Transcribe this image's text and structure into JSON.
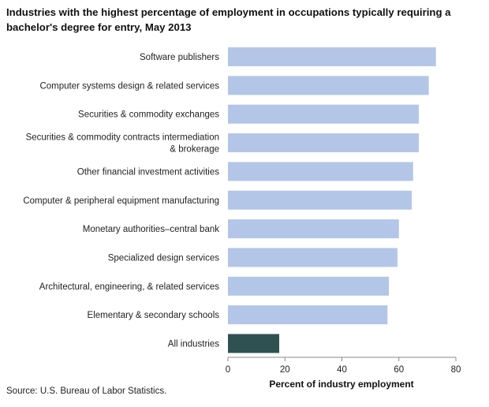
{
  "chart_data": {
    "type": "bar",
    "orientation": "horizontal",
    "title": "Industries with the highest percentage of employment in occupations typically requiring a bachelor's degree for entry, May 2013",
    "xlabel": "Percent of industry employment",
    "ylabel": "",
    "xlim": [
      0,
      80
    ],
    "xticks": [
      0,
      20,
      40,
      60,
      80
    ],
    "grid": false,
    "source": "Source: U.S. Bureau of Labor Statistics.",
    "colors": {
      "bar": "#b4c6e7",
      "highlight": "#2f5151",
      "axis": "#888888"
    },
    "categories": [
      [
        "Software publishers"
      ],
      [
        "Computer systems design & related services"
      ],
      [
        "Securities & commodity exchanges"
      ],
      [
        "Securities & commodity contracts intermediation",
        "& brokerage"
      ],
      [
        "Other financial investment activities"
      ],
      [
        "Computer & peripheral equipment manufacturing"
      ],
      [
        "Monetary authorities–central bank"
      ],
      [
        "Specialized design services"
      ],
      [
        "Architectural, engineering, & related services"
      ],
      [
        "Elementary & secondary schools"
      ],
      [
        "All industries"
      ]
    ],
    "values": [
      73,
      70.5,
      67,
      67,
      65,
      64.5,
      60,
      59.5,
      56.5,
      56,
      18
    ],
    "highlight_index": 10
  }
}
